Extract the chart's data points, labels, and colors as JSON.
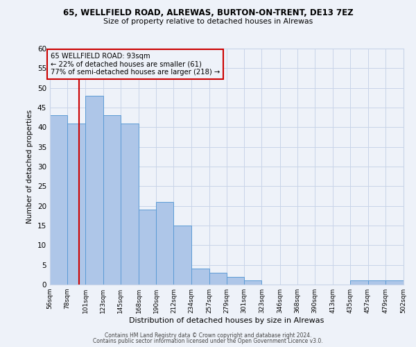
{
  "title1": "65, WELLFIELD ROAD, ALREWAS, BURTON-ON-TRENT, DE13 7EZ",
  "title2": "Size of property relative to detached houses in Alrewas",
  "xlabel": "Distribution of detached houses by size in Alrewas",
  "ylabel": "Number of detached properties",
  "bar_edges": [
    56,
    78,
    101,
    123,
    145,
    168,
    190,
    212,
    234,
    257,
    279,
    301,
    323,
    346,
    368,
    390,
    413,
    435,
    457,
    479,
    502
  ],
  "bar_heights": [
    43,
    41,
    48,
    43,
    41,
    19,
    21,
    15,
    4,
    3,
    2,
    1,
    0,
    0,
    0,
    0,
    0,
    1,
    1,
    1
  ],
  "bar_color": "#aec6e8",
  "bar_edge_color": "#5b9bd5",
  "property_line_x": 93,
  "property_line_color": "#cc0000",
  "annotation_text": "65 WELLFIELD ROAD: 93sqm\n← 22% of detached houses are smaller (61)\n77% of semi-detached houses are larger (218) →",
  "ylim": [
    0,
    60
  ],
  "yticks": [
    0,
    5,
    10,
    15,
    20,
    25,
    30,
    35,
    40,
    45,
    50,
    55,
    60
  ],
  "tick_labels": [
    "56sqm",
    "78sqm",
    "101sqm",
    "123sqm",
    "145sqm",
    "168sqm",
    "190sqm",
    "212sqm",
    "234sqm",
    "257sqm",
    "279sqm",
    "301sqm",
    "323sqm",
    "346sqm",
    "368sqm",
    "390sqm",
    "413sqm",
    "435sqm",
    "457sqm",
    "479sqm",
    "502sqm"
  ],
  "footer1": "Contains HM Land Registry data © Crown copyright and database right 2024.",
  "footer2": "Contains public sector information licensed under the Open Government Licence v3.0.",
  "bg_color": "#eef2f9",
  "grid_color": "#c8d4e8"
}
